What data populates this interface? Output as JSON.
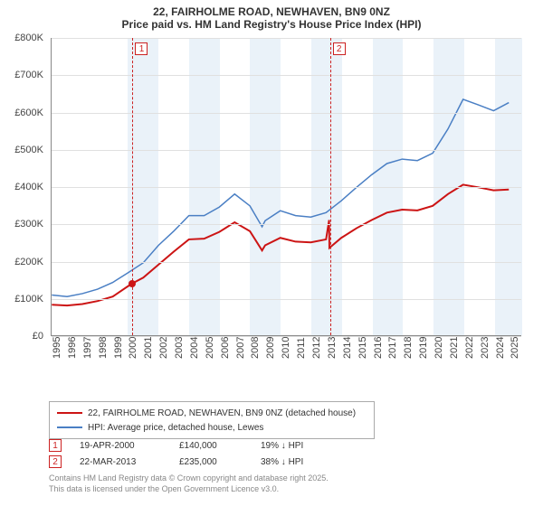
{
  "title": {
    "line1": "22, FAIRHOLME ROAD, NEWHAVEN, BN9 0NZ",
    "line2": "Price paid vs. HM Land Registry's House Price Index (HPI)"
  },
  "chart": {
    "type": "line",
    "background_color": "#ffffff",
    "grid_color": "#e0e0e0",
    "axis_color": "#888888",
    "font_size_axis": 11,
    "xlim": [
      1995,
      2025.8
    ],
    "ylim": [
      0,
      800000
    ],
    "yticks": [
      0,
      100000,
      200000,
      300000,
      400000,
      500000,
      600000,
      700000,
      800000
    ],
    "ytick_labels": [
      "£0",
      "£100K",
      "£200K",
      "£300K",
      "£400K",
      "£500K",
      "£600K",
      "£700K",
      "£800K"
    ],
    "xticks": [
      1995,
      1996,
      1997,
      1998,
      1999,
      2000,
      2001,
      2002,
      2003,
      2004,
      2005,
      2006,
      2007,
      2008,
      2009,
      2010,
      2011,
      2012,
      2013,
      2014,
      2015,
      2016,
      2017,
      2018,
      2019,
      2020,
      2021,
      2022,
      2023,
      2024,
      2025
    ],
    "shading": {
      "color": "#eaf2f9",
      "ranges": [
        [
          2000,
          2002
        ],
        [
          2004,
          2006
        ],
        [
          2008,
          2010
        ],
        [
          2012,
          2014
        ],
        [
          2016,
          2018
        ],
        [
          2020,
          2022
        ],
        [
          2024,
          2025.8
        ]
      ]
    },
    "markers": [
      {
        "n": "1",
        "x": 2000.3
      },
      {
        "n": "2",
        "x": 2013.22
      }
    ],
    "series": [
      {
        "name": "22, FAIRHOLME ROAD, NEWHAVEN, BN9 0NZ (detached house)",
        "color": "#cc1414",
        "width": 2,
        "points": [
          [
            1995,
            82000
          ],
          [
            1996,
            80000
          ],
          [
            1997,
            84000
          ],
          [
            1998,
            92000
          ],
          [
            1999,
            104000
          ],
          [
            2000,
            132000
          ],
          [
            2000.3,
            140000
          ],
          [
            2001,
            155000
          ],
          [
            2002,
            190000
          ],
          [
            2003,
            225000
          ],
          [
            2004,
            258000
          ],
          [
            2005,
            260000
          ],
          [
            2006,
            278000
          ],
          [
            2007,
            304000
          ],
          [
            2008,
            280000
          ],
          [
            2008.8,
            228000
          ],
          [
            2009,
            242000
          ],
          [
            2010,
            262000
          ],
          [
            2011,
            252000
          ],
          [
            2012,
            250000
          ],
          [
            2013,
            258000
          ],
          [
            2013.2,
            310000
          ],
          [
            2013.22,
            235000
          ],
          [
            2014,
            262000
          ],
          [
            2015,
            288000
          ],
          [
            2016,
            310000
          ],
          [
            2017,
            330000
          ],
          [
            2018,
            338000
          ],
          [
            2019,
            336000
          ],
          [
            2020,
            348000
          ],
          [
            2021,
            380000
          ],
          [
            2022,
            405000
          ],
          [
            2023,
            398000
          ],
          [
            2024,
            390000
          ],
          [
            2025,
            392000
          ]
        ],
        "highlight_points": [
          [
            2000.3,
            140000
          ]
        ]
      },
      {
        "name": "HPI: Average price, detached house, Lewes",
        "color": "#4a7fc4",
        "width": 1.5,
        "points": [
          [
            1995,
            108000
          ],
          [
            1996,
            104000
          ],
          [
            1997,
            112000
          ],
          [
            1998,
            124000
          ],
          [
            1999,
            142000
          ],
          [
            2000,
            168000
          ],
          [
            2001,
            195000
          ],
          [
            2002,
            242000
          ],
          [
            2003,
            280000
          ],
          [
            2004,
            322000
          ],
          [
            2005,
            322000
          ],
          [
            2006,
            345000
          ],
          [
            2007,
            380000
          ],
          [
            2008,
            348000
          ],
          [
            2008.8,
            292000
          ],
          [
            2009,
            308000
          ],
          [
            2010,
            335000
          ],
          [
            2011,
            322000
          ],
          [
            2012,
            318000
          ],
          [
            2013,
            330000
          ],
          [
            2014,
            362000
          ],
          [
            2015,
            398000
          ],
          [
            2016,
            432000
          ],
          [
            2017,
            462000
          ],
          [
            2018,
            474000
          ],
          [
            2019,
            470000
          ],
          [
            2020,
            490000
          ],
          [
            2021,
            555000
          ],
          [
            2022,
            635000
          ],
          [
            2023,
            620000
          ],
          [
            2024,
            604000
          ],
          [
            2025,
            626000
          ]
        ]
      }
    ]
  },
  "legend": {
    "items": [
      {
        "color": "#cc1414",
        "label": "22, FAIRHOLME ROAD, NEWHAVEN, BN9 0NZ (detached house)"
      },
      {
        "color": "#4a7fc4",
        "label": "HPI: Average price, detached house, Lewes"
      }
    ]
  },
  "events": [
    {
      "n": "1",
      "date": "19-APR-2000",
      "price": "£140,000",
      "pct": "19% ↓ HPI"
    },
    {
      "n": "2",
      "date": "22-MAR-2013",
      "price": "£235,000",
      "pct": "38% ↓ HPI"
    }
  ],
  "footer": {
    "line1": "Contains HM Land Registry data © Crown copyright and database right 2025.",
    "line2": "This data is licensed under the Open Government Licence v3.0."
  }
}
